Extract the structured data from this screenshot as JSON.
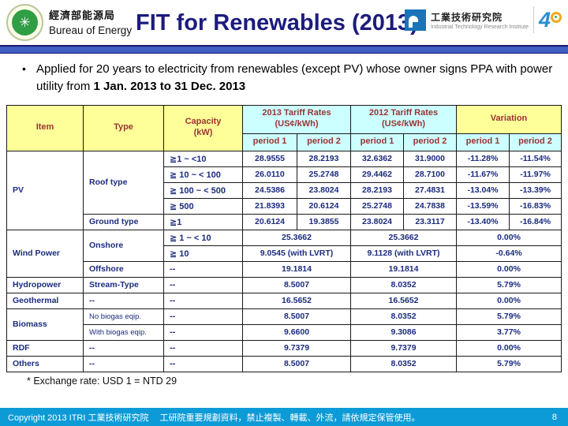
{
  "header": {
    "agency_zh": "經濟部能源局",
    "agency_en": "Bureau of Energy",
    "title": "FIT for Renewables (2013)",
    "itri_zh": "工業技術研究院",
    "itri_en": "Industrial Technology Research Institute",
    "anniv_4": "4",
    "gov_logo_glyph": "✳"
  },
  "bullet": {
    "marker": "•",
    "text": "Applied for 20 years to electricity from renewables (except PV) whose owner signs PPA with power utility from ",
    "bold_text": "1 Jan. 2013 to 31 Dec. 2013"
  },
  "table": {
    "col_item": "Item",
    "col_type": "Type",
    "col_capacity": "Capacity\n(kW)",
    "col_2013": "2013 Tariff Rates\n(US¢/kWh)",
    "col_2012": "2012 Tariff Rates\n(US¢/kWh)",
    "col_variation": "Variation",
    "period1": "period 1",
    "period2": "period 2",
    "body": [
      [
        {
          "t": "PV",
          "rs": 5,
          "cls": "l"
        },
        {
          "t": "Roof type",
          "rs": 4,
          "cls": "l"
        },
        {
          "t": "≧1 ~ <10",
          "cls": "l cap"
        },
        {
          "t": "28.9555"
        },
        {
          "t": "28.2193"
        },
        {
          "t": "32.6362"
        },
        {
          "t": "31.9000"
        },
        {
          "t": "-11.28%"
        },
        {
          "t": "-11.54%"
        }
      ],
      [
        {
          "t": "≧ 10 ~ < 100",
          "cls": "l cap"
        },
        {
          "t": "26.0110"
        },
        {
          "t": "25.2748"
        },
        {
          "t": "29.4462"
        },
        {
          "t": "28.7100"
        },
        {
          "t": "-11.67%"
        },
        {
          "t": "-11.97%"
        }
      ],
      [
        {
          "t": "≧ 100 ~ < 500",
          "cls": "l cap"
        },
        {
          "t": "24.5386"
        },
        {
          "t": "23.8024"
        },
        {
          "t": "28.2193"
        },
        {
          "t": "27.4831"
        },
        {
          "t": "-13.04%"
        },
        {
          "t": "-13.39%"
        }
      ],
      [
        {
          "t": "≧ 500",
          "cls": "l cap"
        },
        {
          "t": "21.8393"
        },
        {
          "t": "20.6124"
        },
        {
          "t": "25.2748"
        },
        {
          "t": "24.7838"
        },
        {
          "t": "-13.59%"
        },
        {
          "t": "-16.83%"
        }
      ],
      [
        {
          "t": "Ground type",
          "cls": "l"
        },
        {
          "t": "≧1",
          "cls": "l cap"
        },
        {
          "t": "20.6124"
        },
        {
          "t": "19.3855"
        },
        {
          "t": "23.8024"
        },
        {
          "t": "23.3117"
        },
        {
          "t": "-13.40%"
        },
        {
          "t": "-16.84%"
        }
      ],
      [
        {
          "t": "Wind Power",
          "rs": 3,
          "cls": "l"
        },
        {
          "t": "Onshore",
          "rs": 2,
          "cls": "l"
        },
        {
          "t": "≧ 1 ~ < 10",
          "cls": "l cap"
        },
        {
          "t": "25.3662",
          "cs": 2
        },
        {
          "t": "25.3662",
          "cs": 2
        },
        {
          "t": "0.00%",
          "cs": 2
        }
      ],
      [
        {
          "t": "≧ 10",
          "cls": "l cap"
        },
        {
          "t": "9.0545 (with LVRT)",
          "cs": 2
        },
        {
          "t": "9.1128 (with LVRT)",
          "cs": 2
        },
        {
          "t": "-0.64%",
          "cs": 2
        }
      ],
      [
        {
          "t": "Offshore",
          "cls": "l"
        },
        {
          "t": "--",
          "cls": "l cap"
        },
        {
          "t": "19.1814",
          "cs": 2
        },
        {
          "t": "19.1814",
          "cs": 2
        },
        {
          "t": "0.00%",
          "cs": 2
        }
      ],
      [
        {
          "t": "Hydropower",
          "cls": "l"
        },
        {
          "t": "Stream-Type",
          "cls": "l"
        },
        {
          "t": "--",
          "cls": "l cap"
        },
        {
          "t": "8.5007",
          "cs": 2
        },
        {
          "t": "8.0352",
          "cs": 2
        },
        {
          "t": "5.79%",
          "cs": 2
        }
      ],
      [
        {
          "t": "Geothermal",
          "cls": "l"
        },
        {
          "t": "--",
          "cls": "l"
        },
        {
          "t": "--",
          "cls": "l cap"
        },
        {
          "t": "16.5652",
          "cs": 2
        },
        {
          "t": "16.5652",
          "cs": 2
        },
        {
          "t": "0.00%",
          "cs": 2
        }
      ],
      [
        {
          "t": "Biomass",
          "rs": 2,
          "cls": "l"
        },
        {
          "t": "No biogas eqip.",
          "cls": "l sm"
        },
        {
          "t": "--",
          "cls": "l cap"
        },
        {
          "t": "8.5007",
          "cs": 2
        },
        {
          "t": "8.0352",
          "cs": 2
        },
        {
          "t": "5.79%",
          "cs": 2
        }
      ],
      [
        {
          "t": "With biogas eqip.",
          "cls": "l sm"
        },
        {
          "t": "--",
          "cls": "l cap"
        },
        {
          "t": "9.6600",
          "cs": 2
        },
        {
          "t": "9.3086",
          "cs": 2
        },
        {
          "t": "3.77%",
          "cs": 2
        }
      ],
      [
        {
          "t": "RDF",
          "cls": "l"
        },
        {
          "t": "--",
          "cls": "l"
        },
        {
          "t": "--",
          "cls": "l cap"
        },
        {
          "t": "9.7379",
          "cs": 2
        },
        {
          "t": "9.7379",
          "cs": 2
        },
        {
          "t": "0.00%",
          "cs": 2
        }
      ],
      [
        {
          "t": "Others",
          "cls": "l"
        },
        {
          "t": "--",
          "cls": "l"
        },
        {
          "t": "--",
          "cls": "l cap"
        },
        {
          "t": "8.5007",
          "cs": 2
        },
        {
          "t": "8.0352",
          "cs": 2
        },
        {
          "t": "5.79%",
          "cs": 2
        }
      ]
    ]
  },
  "footnote": "*  Exchange rate: USD 1 = NTD 29",
  "footer": {
    "copyright": "Copyright 2013 ITRI 工業技術研究院　 工研院重要規劃資料，禁止複製、轉載、外流，請依規定保管使用。",
    "page": "8"
  },
  "colors": {
    "title_text": "#1b1b7e",
    "header_yellow": "#ffff99",
    "header_cyan": "#ccffff",
    "header_text": "#9b3333",
    "body_text": "#1b2b7e",
    "divider_blue": "#3e5ec0",
    "footer_bar": "#0d9bd7",
    "itri_blue": "#1b74b8",
    "logo_green": "#2f9e44"
  }
}
